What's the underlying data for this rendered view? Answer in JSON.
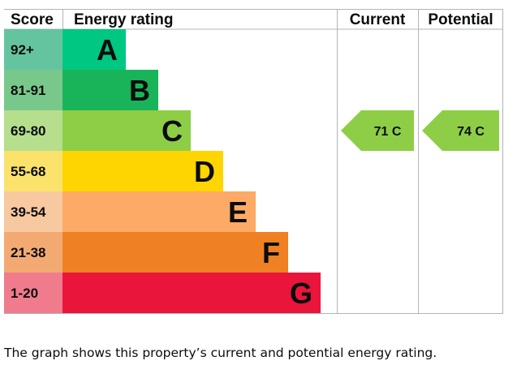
{
  "chart_data": {
    "type": "bar",
    "headers": {
      "score": "Score",
      "rating": "Energy rating",
      "current": "Current",
      "potential": "Potential"
    },
    "bands": [
      {
        "letter": "A",
        "range": "92+",
        "bar_color": "#00c781",
        "score_color": "#65c4a0"
      },
      {
        "letter": "B",
        "range": "81-91",
        "bar_color": "#19b459",
        "score_color": "#79c88b"
      },
      {
        "letter": "C",
        "range": "69-80",
        "bar_color": "#8dce46",
        "score_color": "#b5de8d"
      },
      {
        "letter": "D",
        "range": "55-68",
        "bar_color": "#ffd500",
        "score_color": "#fbe26b"
      },
      {
        "letter": "E",
        "range": "39-54",
        "bar_color": "#fcaa65",
        "score_color": "#f8c8a0"
      },
      {
        "letter": "F",
        "range": "21-38",
        "bar_color": "#ef8023",
        "score_color": "#f3aa72"
      },
      {
        "letter": "G",
        "range": "1-20",
        "bar_color": "#e9153b",
        "score_color": "#f07b8d"
      }
    ],
    "current": {
      "value": 71,
      "band": "C",
      "label": "71  C",
      "color": "#8dce46"
    },
    "potential": {
      "value": 74,
      "band": "C",
      "label": "74  C",
      "color": "#8dce46"
    }
  },
  "caption": "The graph shows this property’s current and potential energy rating."
}
